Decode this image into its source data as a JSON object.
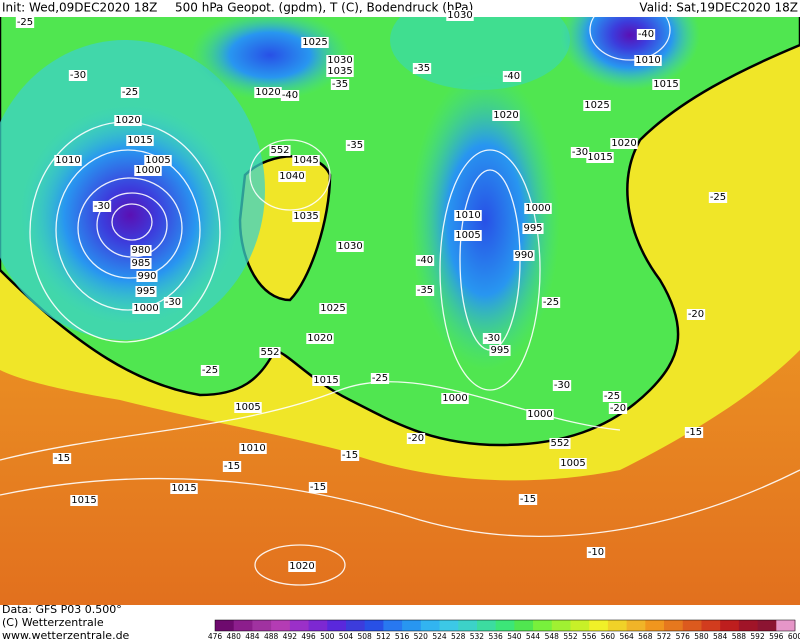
{
  "header": {
    "init": "Init: Wed,09DEC2020 18Z",
    "title": "500 hPa Geopot. (gpdm), T (C), Bodendruck (hPa)",
    "valid": "Valid: Sat,19DEC2020 18Z"
  },
  "map_labels": [
    "-25",
    "1025",
    "1030",
    "1035",
    "-30",
    "-25",
    "1020",
    "-40",
    "-35",
    "1020",
    "1015",
    "1010",
    "1005",
    "1000",
    "552",
    "1045",
    "-35",
    "1040",
    "-30",
    "1035",
    "1030",
    "980",
    "985",
    "990",
    "995",
    "-30",
    "1000",
    "1025",
    "1020",
    "552",
    "-25",
    "1015",
    "1005",
    "1010",
    "-15",
    "-15",
    "-15",
    "1015",
    "-15",
    "1015",
    "1020",
    "-20",
    "-25",
    "1000",
    "995",
    "-30",
    "-35",
    "-40",
    "1005",
    "1010",
    "1020",
    "-35",
    "-40",
    "1025",
    "1015",
    "-30",
    "1020",
    "1010",
    "1015",
    "-40",
    "-25",
    "1000",
    "995",
    "990",
    "-25",
    "-20",
    "-30",
    "-25",
    "-20",
    "1000",
    "552",
    "1005",
    "-15",
    "-15",
    "-10",
    "1030"
  ],
  "footer": {
    "data": "Data: GFS P03 0.500°",
    "copyright": "(C) Wetterzentrale",
    "url": "www.wetterzentrale.de"
  },
  "colorbar": {
    "labels": [
      476,
      480,
      484,
      488,
      492,
      496,
      500,
      504,
      508,
      512,
      516,
      520,
      524,
      528,
      532,
      536,
      540,
      544,
      548,
      552,
      556,
      560,
      564,
      568,
      572,
      576,
      580,
      584,
      588,
      592,
      596,
      600
    ],
    "colors": [
      "#6e0a6e",
      "#8c1e8c",
      "#a032a0",
      "#b43cb4",
      "#9b30c8",
      "#7d28d2",
      "#5a28dc",
      "#3c3cdc",
      "#2850e6",
      "#2878f0",
      "#2896f0",
      "#32b4f0",
      "#3cc8e6",
      "#3cd2c8",
      "#3cdca0",
      "#3ce678",
      "#50e650",
      "#78f03c",
      "#a0f032",
      "#c8f028",
      "#f0f028",
      "#f0d228",
      "#f0b428",
      "#f0961e",
      "#e6781e",
      "#dc5a1e",
      "#d23c1e",
      "#be1e1e",
      "#a01428",
      "#8c1432",
      "#e696c8"
    ]
  }
}
